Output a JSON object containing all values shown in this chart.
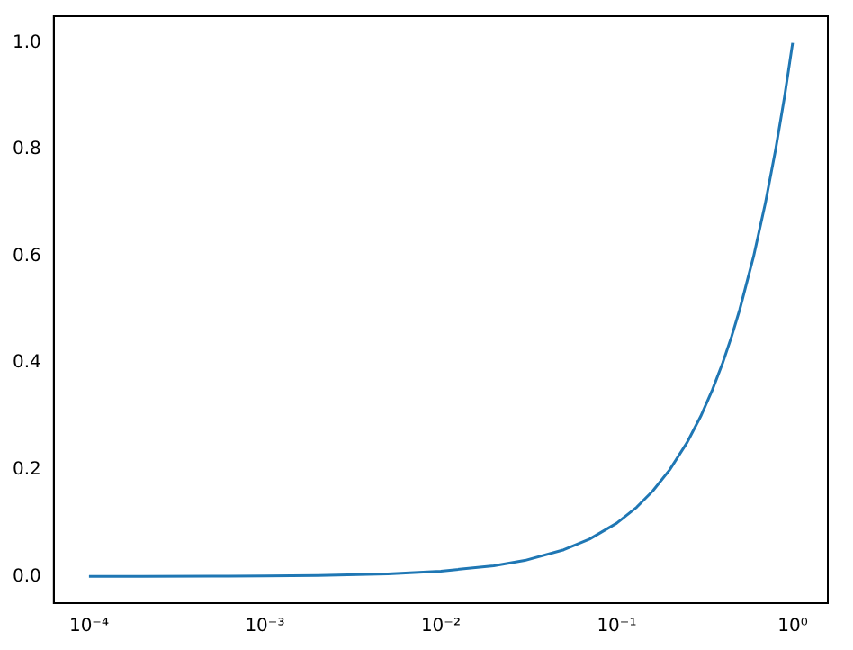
{
  "chart_data": {
    "type": "line",
    "log": "x",
    "grid": false,
    "legend": false,
    "marker": "none",
    "line_style": "solid",
    "x": [
      0.0001,
      0.0002,
      0.0005,
      0.001,
      0.002,
      0.005,
      0.01,
      0.02,
      0.03,
      0.05,
      0.07,
      0.1,
      0.13,
      0.16,
      0.2,
      0.25,
      0.3,
      0.35,
      0.4,
      0.45,
      0.5,
      0.6,
      0.7,
      0.8,
      0.9,
      1.0
    ],
    "series": [
      {
        "color": "#1f77b4",
        "values": [
          0.0001,
          0.0002,
          0.0005,
          0.001,
          0.002,
          0.005,
          0.01,
          0.02,
          0.03,
          0.05,
          0.07,
          0.1,
          0.13,
          0.16,
          0.2,
          0.25,
          0.3,
          0.35,
          0.4,
          0.45,
          0.5,
          0.6,
          0.7,
          0.8,
          0.9,
          1.0
        ]
      }
    ],
    "xlim": [
      6.31e-05,
      1.585
    ],
    "xticks": [
      {
        "value": 0.0001,
        "label": "10⁻⁴"
      },
      {
        "value": 0.001,
        "label": "10⁻³"
      },
      {
        "value": 0.01,
        "label": "10⁻²"
      },
      {
        "value": 0.1,
        "label": "10⁻¹"
      },
      {
        "value": 1,
        "label": "10⁰"
      }
    ],
    "ylim": [
      -0.05,
      1.05
    ],
    "yticks": [
      {
        "value": 0,
        "label": "0.0"
      },
      {
        "value": 0.2,
        "label": "0.2"
      },
      {
        "value": 0.4,
        "label": "0.4"
      },
      {
        "value": 0.6,
        "label": "0.6"
      },
      {
        "value": 0.8,
        "label": "0.8"
      },
      {
        "value": 1,
        "label": "1.0"
      }
    ]
  }
}
